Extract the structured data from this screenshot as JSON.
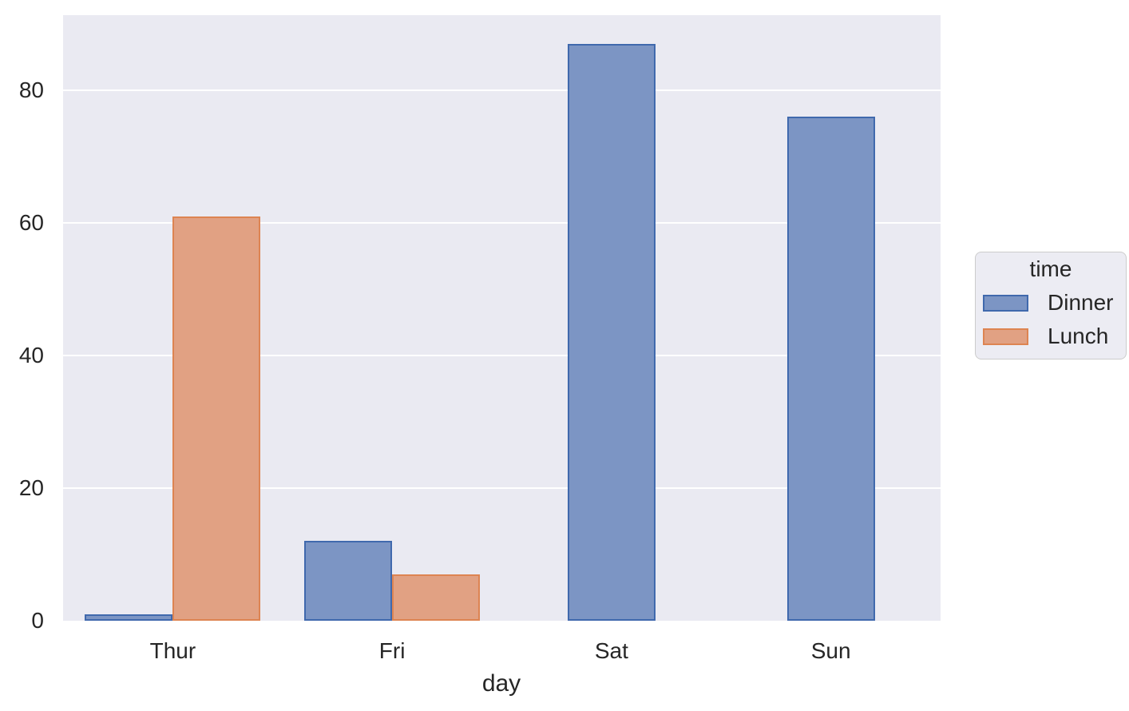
{
  "chart_data": {
    "type": "bar",
    "title": "",
    "xlabel": "day",
    "ylabel": "",
    "categories": [
      "Thur",
      "Fri",
      "Sat",
      "Sun"
    ],
    "series": [
      {
        "name": "Dinner",
        "values": [
          1,
          12,
          87,
          76
        ]
      },
      {
        "name": "Lunch",
        "values": [
          61,
          7,
          null,
          null
        ]
      }
    ],
    "ylim": [
      0,
      91.35
    ],
    "yticks": [
      0,
      20,
      40,
      60,
      80
    ],
    "grid": "horizontal",
    "legend": {
      "title": "time",
      "entries": [
        "Dinner",
        "Lunch"
      ],
      "position": "right-outside"
    },
    "colors": {
      "Dinner": {
        "fill": "#7C95C4",
        "edge": "#4069AD"
      },
      "Lunch": {
        "fill": "#E1A183",
        "edge": "#DD8452"
      }
    },
    "background": {
      "figure": "#FFFFFF",
      "axes": "#EAEAF2",
      "gridline": "#FFFFFF",
      "legend_face": "#ECECF3",
      "legend_edge": "#CCCCCC"
    }
  }
}
